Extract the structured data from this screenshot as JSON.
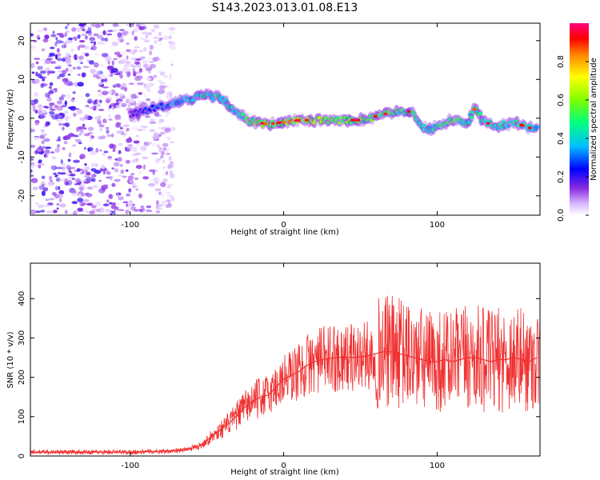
{
  "title": "S143.2023.013.01.08.E13",
  "chart_data": [
    {
      "type": "heatmap",
      "xlabel": "Height of straight line (km)",
      "ylabel": "Frequency (Hz)",
      "xlim": [
        -165,
        167
      ],
      "ylim": [
        -25,
        24.5
      ],
      "xticks": [
        -100,
        0,
        100
      ],
      "yticks": [
        -20,
        -10,
        0,
        10,
        20
      ],
      "grid": false,
      "colorbar": {
        "label": "Normalized spectral amplitude",
        "range": [
          0.0,
          1.0
        ],
        "ticks": [
          0.0,
          0.2,
          0.4,
          0.6,
          0.8
        ],
        "colormap": [
          "#ffffff",
          "#d8b8ff",
          "#8a2be2",
          "#0000ff",
          "#00c0ff",
          "#00ff80",
          "#80ff00",
          "#ffff00",
          "#ff8000",
          "#ff0000",
          "#ff0080"
        ]
      },
      "ridge": {
        "x": [
          -100,
          -90,
          -80,
          -70,
          -60,
          -50,
          -40,
          -30,
          -25,
          -20,
          -10,
          0,
          10,
          20,
          30,
          40,
          50,
          60,
          70,
          80,
          85,
          90,
          95,
          100,
          110,
          120,
          125,
          130,
          140,
          150,
          160,
          165
        ],
        "y": [
          1,
          2,
          3,
          4,
          5,
          6,
          5,
          1,
          0,
          -1,
          -1.5,
          -1,
          -0.5,
          -0.5,
          -0.5,
          -0.5,
          -0.5,
          0.5,
          1.5,
          2,
          1,
          -2,
          -3,
          -2,
          -0.5,
          -1,
          3,
          -1,
          -2,
          -1,
          -2.5,
          -2.5
        ],
        "amplitude": [
          0.15,
          0.25,
          0.3,
          0.35,
          0.4,
          0.45,
          0.45,
          0.4,
          0.5,
          0.55,
          0.6,
          0.6,
          0.65,
          0.6,
          0.55,
          0.55,
          0.55,
          0.5,
          0.5,
          0.45,
          0.45,
          0.45,
          0.4,
          0.45,
          0.5,
          0.45,
          0.5,
          0.45,
          0.45,
          0.45,
          0.4,
          0.4
        ]
      }
    },
    {
      "type": "line",
      "xlabel": "Height of straight line (km)",
      "ylabel": "SNR (10 * v/v)",
      "xlim": [
        -165,
        167
      ],
      "ylim": [
        0,
        490
      ],
      "xticks": [
        -100,
        0,
        100
      ],
      "yticks": [
        0,
        100,
        200,
        300,
        400
      ],
      "color": "#f03030",
      "grid": false,
      "series": [
        {
          "x": [
            -165,
            -140,
            -120,
            -100,
            -80,
            -65,
            -55,
            -50,
            -45,
            -40,
            -35,
            -30,
            -25,
            -20,
            -15,
            -10,
            -5,
            0,
            5,
            10,
            15,
            20,
            25,
            30,
            35,
            40,
            45,
            50,
            55,
            60,
            65,
            70,
            75,
            80,
            85,
            90,
            95,
            100,
            105,
            110,
            115,
            120,
            125,
            130,
            135,
            140,
            145,
            150,
            155,
            160,
            165
          ],
          "y": [
            10,
            10,
            10,
            10,
            12,
            15,
            25,
            40,
            55,
            70,
            85,
            105,
            125,
            140,
            150,
            155,
            175,
            195,
            205,
            215,
            230,
            240,
            245,
            248,
            250,
            252,
            250,
            252,
            255,
            260,
            265,
            265,
            260,
            255,
            250,
            245,
            240,
            240,
            245,
            240,
            245,
            250,
            250,
            245,
            240,
            245,
            245,
            250,
            245,
            240,
            250
          ]
        }
      ]
    }
  ]
}
